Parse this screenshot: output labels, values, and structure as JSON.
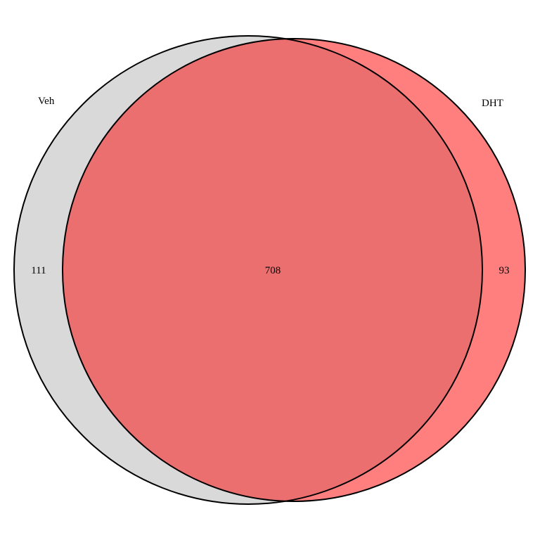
{
  "sets": [
    {
      "name": "Veh",
      "color": "#d9d9d9"
    },
    {
      "name": "DHT",
      "color": "#ff7f7f"
    }
  ],
  "regions": {
    "veh_only": "111",
    "both": "708",
    "dht_only": "93"
  },
  "overlap_color": "#ec6f6f",
  "outline_color": "#000000"
}
